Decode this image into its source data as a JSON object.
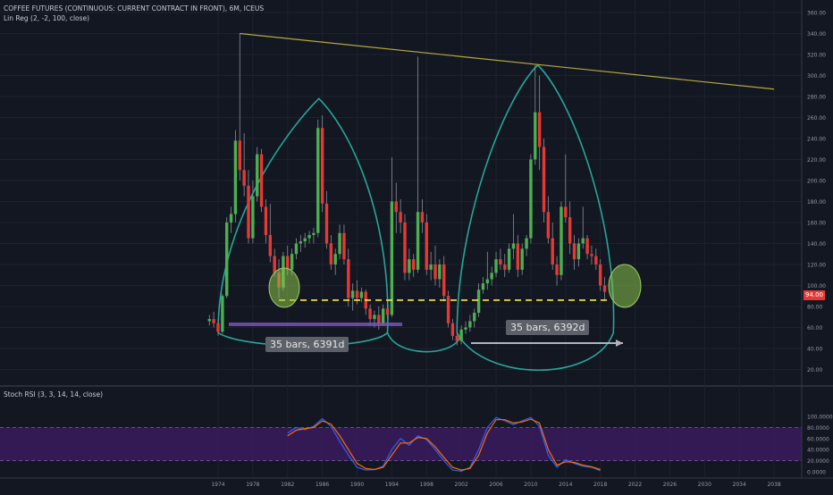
{
  "header": {
    "title": "COFFEE FUTURES (CONTINUOUS: CURRENT CONTRACT IN FRONT), 6M, ICEUS",
    "indicator": "Lin Reg (2, -2, 100, close)",
    "stoch_label": "Stoch RSI (3, 3, 14, 14, close)"
  },
  "annotations": {
    "left_bars": "35 bars, 6391d",
    "right_bars": "35 bars, 6392d"
  },
  "price_tag": {
    "value": "94.00",
    "color": "#e53935"
  },
  "colors": {
    "up": "#4caf50",
    "down": "#e53935",
    "wick": "#8a8f9a",
    "cup": "#26a69a",
    "trendline": "#b7a83a",
    "support": "#ffeb3b",
    "ellipse": "#8bc34a",
    "stoch_k": "#2962ff",
    "stoch_d": "#ff6d00",
    "band": "#3a1b5e"
  },
  "chart_data": [
    {
      "type": "candlestick",
      "title": "",
      "price_axis": {
        "ticks": [
          "360.00",
          "340.00",
          "320.00",
          "300.00",
          "280.00",
          "260.00",
          "240.00",
          "220.00",
          "200.00",
          "180.00",
          "160.00",
          "140.00",
          "120.00",
          "100.00",
          "80.00",
          "60.00",
          "40.00",
          "20.00"
        ]
      },
      "time_axis": {
        "ticks": [
          "1974",
          "1978",
          "1982",
          "1986",
          "1990",
          "1994",
          "1998",
          "2002",
          "2006",
          "2010",
          "2014",
          "2018",
          "2022",
          "2026",
          "2030",
          "2034",
          "2038"
        ]
      },
      "candles": [
        {
          "t": 1973.0,
          "o": 66,
          "h": 72,
          "l": 62,
          "c": 68
        },
        {
          "t": 1973.5,
          "o": 68,
          "h": 75,
          "l": 60,
          "c": 64
        },
        {
          "t": 1974.0,
          "o": 64,
          "h": 68,
          "l": 52,
          "c": 56
        },
        {
          "t": 1974.5,
          "o": 56,
          "h": 92,
          "l": 54,
          "c": 90
        },
        {
          "t": 1975.0,
          "o": 90,
          "h": 165,
          "l": 88,
          "c": 160
        },
        {
          "t": 1975.5,
          "o": 160,
          "h": 175,
          "l": 150,
          "c": 168
        },
        {
          "t": 1976.0,
          "o": 168,
          "h": 248,
          "l": 160,
          "c": 238
        },
        {
          "t": 1976.5,
          "o": 238,
          "h": 340,
          "l": 200,
          "c": 210
        },
        {
          "t": 1977.0,
          "o": 210,
          "h": 245,
          "l": 185,
          "c": 195
        },
        {
          "t": 1977.5,
          "o": 195,
          "h": 210,
          "l": 140,
          "c": 145
        },
        {
          "t": 1978.0,
          "o": 145,
          "h": 200,
          "l": 140,
          "c": 185
        },
        {
          "t": 1978.5,
          "o": 185,
          "h": 232,
          "l": 180,
          "c": 225
        },
        {
          "t": 1979.0,
          "o": 225,
          "h": 230,
          "l": 170,
          "c": 175
        },
        {
          "t": 1979.5,
          "o": 175,
          "h": 182,
          "l": 140,
          "c": 148
        },
        {
          "t": 1980.0,
          "o": 148,
          "h": 178,
          "l": 122,
          "c": 128
        },
        {
          "t": 1980.5,
          "o": 128,
          "h": 135,
          "l": 108,
          "c": 112
        },
        {
          "t": 1981.0,
          "o": 112,
          "h": 125,
          "l": 88,
          "c": 98
        },
        {
          "t": 1981.5,
          "o": 98,
          "h": 132,
          "l": 95,
          "c": 128
        },
        {
          "t": 1982.0,
          "o": 128,
          "h": 138,
          "l": 110,
          "c": 115
        },
        {
          "t": 1982.5,
          "o": 115,
          "h": 135,
          "l": 110,
          "c": 130
        },
        {
          "t": 1983.0,
          "o": 130,
          "h": 145,
          "l": 125,
          "c": 140
        },
        {
          "t": 1983.5,
          "o": 140,
          "h": 148,
          "l": 132,
          "c": 142
        },
        {
          "t": 1984.0,
          "o": 142,
          "h": 150,
          "l": 136,
          "c": 145
        },
        {
          "t": 1984.5,
          "o": 145,
          "h": 152,
          "l": 140,
          "c": 148
        },
        {
          "t": 1985.0,
          "o": 148,
          "h": 155,
          "l": 140,
          "c": 150
        },
        {
          "t": 1985.5,
          "o": 150,
          "h": 258,
          "l": 146,
          "c": 250
        },
        {
          "t": 1986.0,
          "o": 250,
          "h": 262,
          "l": 170,
          "c": 178
        },
        {
          "t": 1986.5,
          "o": 178,
          "h": 190,
          "l": 135,
          "c": 140
        },
        {
          "t": 1987.0,
          "o": 140,
          "h": 148,
          "l": 115,
          "c": 120
        },
        {
          "t": 1987.5,
          "o": 120,
          "h": 135,
          "l": 110,
          "c": 130
        },
        {
          "t": 1988.0,
          "o": 130,
          "h": 158,
          "l": 125,
          "c": 150
        },
        {
          "t": 1988.5,
          "o": 150,
          "h": 158,
          "l": 120,
          "c": 125
        },
        {
          "t": 1989.0,
          "o": 125,
          "h": 135,
          "l": 80,
          "c": 88
        },
        {
          "t": 1989.5,
          "o": 88,
          "h": 102,
          "l": 76,
          "c": 95
        },
        {
          "t": 1990.0,
          "o": 95,
          "h": 105,
          "l": 82,
          "c": 88
        },
        {
          "t": 1990.5,
          "o": 88,
          "h": 98,
          "l": 84,
          "c": 94
        },
        {
          "t": 1991.0,
          "o": 94,
          "h": 96,
          "l": 72,
          "c": 78
        },
        {
          "t": 1991.5,
          "o": 78,
          "h": 82,
          "l": 62,
          "c": 68
        },
        {
          "t": 1992.0,
          "o": 68,
          "h": 76,
          "l": 60,
          "c": 72
        },
        {
          "t": 1992.5,
          "o": 72,
          "h": 80,
          "l": 58,
          "c": 64
        },
        {
          "t": 1993.0,
          "o": 64,
          "h": 82,
          "l": 62,
          "c": 78
        },
        {
          "t": 1993.5,
          "o": 78,
          "h": 85,
          "l": 68,
          "c": 72
        },
        {
          "t": 1994.0,
          "o": 72,
          "h": 222,
          "l": 70,
          "c": 180
        },
        {
          "t": 1994.5,
          "o": 180,
          "h": 198,
          "l": 150,
          "c": 170
        },
        {
          "t": 1995.0,
          "o": 170,
          "h": 182,
          "l": 150,
          "c": 160
        },
        {
          "t": 1995.5,
          "o": 160,
          "h": 168,
          "l": 105,
          "c": 112
        },
        {
          "t": 1996.0,
          "o": 112,
          "h": 135,
          "l": 105,
          "c": 125
        },
        {
          "t": 1996.5,
          "o": 125,
          "h": 130,
          "l": 108,
          "c": 115
        },
        {
          "t": 1997.0,
          "o": 115,
          "h": 318,
          "l": 112,
          "c": 170
        },
        {
          "t": 1997.5,
          "o": 170,
          "h": 182,
          "l": 150,
          "c": 160
        },
        {
          "t": 1998.0,
          "o": 160,
          "h": 168,
          "l": 110,
          "c": 115
        },
        {
          "t": 1998.5,
          "o": 115,
          "h": 132,
          "l": 105,
          "c": 120
        },
        {
          "t": 1999.0,
          "o": 120,
          "h": 138,
          "l": 100,
          "c": 106
        },
        {
          "t": 1999.5,
          "o": 106,
          "h": 125,
          "l": 98,
          "c": 120
        },
        {
          "t": 2000.0,
          "o": 120,
          "h": 128,
          "l": 85,
          "c": 90
        },
        {
          "t": 2000.5,
          "o": 90,
          "h": 95,
          "l": 60,
          "c": 64
        },
        {
          "t": 2001.0,
          "o": 64,
          "h": 68,
          "l": 48,
          "c": 52
        },
        {
          "t": 2001.5,
          "o": 52,
          "h": 56,
          "l": 43,
          "c": 47
        },
        {
          "t": 2002.0,
          "o": 47,
          "h": 62,
          "l": 44,
          "c": 58
        },
        {
          "t": 2002.5,
          "o": 58,
          "h": 66,
          "l": 54,
          "c": 60
        },
        {
          "t": 2003.0,
          "o": 60,
          "h": 72,
          "l": 56,
          "c": 66
        },
        {
          "t": 2003.5,
          "o": 66,
          "h": 78,
          "l": 60,
          "c": 74
        },
        {
          "t": 2004.0,
          "o": 74,
          "h": 102,
          "l": 70,
          "c": 96
        },
        {
          "t": 2004.5,
          "o": 96,
          "h": 108,
          "l": 92,
          "c": 102
        },
        {
          "t": 2005.0,
          "o": 102,
          "h": 132,
          "l": 96,
          "c": 106
        },
        {
          "t": 2005.5,
          "o": 106,
          "h": 118,
          "l": 100,
          "c": 112
        },
        {
          "t": 2006.0,
          "o": 112,
          "h": 132,
          "l": 108,
          "c": 125
        },
        {
          "t": 2006.5,
          "o": 125,
          "h": 135,
          "l": 115,
          "c": 120
        },
        {
          "t": 2007.0,
          "o": 120,
          "h": 130,
          "l": 108,
          "c": 115
        },
        {
          "t": 2007.5,
          "o": 115,
          "h": 140,
          "l": 112,
          "c": 135
        },
        {
          "t": 2008.0,
          "o": 135,
          "h": 168,
          "l": 125,
          "c": 140
        },
        {
          "t": 2008.5,
          "o": 140,
          "h": 148,
          "l": 108,
          "c": 115
        },
        {
          "t": 2009.0,
          "o": 115,
          "h": 140,
          "l": 110,
          "c": 135
        },
        {
          "t": 2009.5,
          "o": 135,
          "h": 148,
          "l": 128,
          "c": 145
        },
        {
          "t": 2010.0,
          "o": 145,
          "h": 225,
          "l": 140,
          "c": 220
        },
        {
          "t": 2010.5,
          "o": 220,
          "h": 310,
          "l": 215,
          "c": 265
        },
        {
          "t": 2011.0,
          "o": 265,
          "h": 300,
          "l": 210,
          "c": 232
        },
        {
          "t": 2011.5,
          "o": 232,
          "h": 240,
          "l": 160,
          "c": 170
        },
        {
          "t": 2012.0,
          "o": 170,
          "h": 185,
          "l": 140,
          "c": 145
        },
        {
          "t": 2012.5,
          "o": 145,
          "h": 160,
          "l": 115,
          "c": 120
        },
        {
          "t": 2013.0,
          "o": 120,
          "h": 128,
          "l": 100,
          "c": 110
        },
        {
          "t": 2013.5,
          "o": 110,
          "h": 180,
          "l": 105,
          "c": 175
        },
        {
          "t": 2014.0,
          "o": 175,
          "h": 225,
          "l": 160,
          "c": 165
        },
        {
          "t": 2014.5,
          "o": 165,
          "h": 180,
          "l": 130,
          "c": 140
        },
        {
          "t": 2015.0,
          "o": 140,
          "h": 148,
          "l": 115,
          "c": 125
        },
        {
          "t": 2015.5,
          "o": 125,
          "h": 145,
          "l": 118,
          "c": 140
        },
        {
          "t": 2016.0,
          "o": 140,
          "h": 175,
          "l": 135,
          "c": 145
        },
        {
          "t": 2016.5,
          "o": 145,
          "h": 148,
          "l": 125,
          "c": 130
        },
        {
          "t": 2017.0,
          "o": 130,
          "h": 138,
          "l": 120,
          "c": 128
        },
        {
          "t": 2017.5,
          "o": 128,
          "h": 135,
          "l": 115,
          "c": 120
        },
        {
          "t": 2018.0,
          "o": 120,
          "h": 125,
          "l": 95,
          "c": 100
        },
        {
          "t": 2018.5,
          "o": 100,
          "h": 108,
          "l": 86,
          "c": 94
        }
      ],
      "lines": [
        {
          "kind": "trendline",
          "from": [
            1976.5,
            340
          ],
          "to": [
            2038,
            287
          ]
        },
        {
          "kind": "support",
          "level": 86,
          "from": 1981,
          "to": 2019
        }
      ],
      "cups": [
        {
          "start": 1974.0,
          "peak": 1985.6,
          "end": 1993.5,
          "top": 278,
          "bottom": 47
        },
        {
          "start": 1993.5,
          "end": 2001.8,
          "bottom": 36
        },
        {
          "start": 2001.5,
          "peak": 2010.8,
          "end": 2019.5,
          "top": 310,
          "bottom": 16
        }
      ]
    },
    {
      "type": "line",
      "title": "",
      "y_axis": {
        "ticks": [
          "100.0000",
          "80.0000",
          "60.0000",
          "40.0000",
          "20.0000",
          "0.0000"
        ],
        "range": [
          0,
          100
        ]
      },
      "band": [
        20,
        80
      ],
      "series": [
        {
          "values": [
            [
              1982,
              70
            ],
            [
              1983,
              80
            ],
            [
              1984,
              76
            ],
            [
              1985,
              82
            ],
            [
              1986,
              96
            ],
            [
              1987,
              82
            ],
            [
              1988,
              55
            ],
            [
              1989,
              30
            ],
            [
              1990,
              8
            ],
            [
              1991,
              3
            ],
            [
              1992,
              4
            ],
            [
              1993,
              10
            ],
            [
              1994,
              40
            ],
            [
              1995,
              60
            ],
            [
              1996,
              48
            ],
            [
              1997,
              65
            ],
            [
              1998,
              58
            ],
            [
              1999,
              40
            ],
            [
              2000,
              20
            ],
            [
              2001,
              3
            ],
            [
              2002,
              1
            ],
            [
              2003,
              8
            ],
            [
              2004,
              40
            ],
            [
              2005,
              80
            ],
            [
              2006,
              98
            ],
            [
              2007,
              92
            ],
            [
              2008,
              85
            ],
            [
              2009,
              92
            ],
            [
              2010,
              98
            ],
            [
              2011,
              82
            ],
            [
              2012,
              30
            ],
            [
              2013,
              8
            ],
            [
              2014,
              22
            ],
            [
              2015,
              15
            ],
            [
              2016,
              10
            ],
            [
              2017,
              8
            ],
            [
              2018,
              2
            ]
          ]
        },
        {
          "values": [
            [
              1982,
              65
            ],
            [
              1983,
              75
            ],
            [
              1984,
              78
            ],
            [
              1985,
              80
            ],
            [
              1986,
              92
            ],
            [
              1987,
              86
            ],
            [
              1988,
              65
            ],
            [
              1989,
              40
            ],
            [
              1990,
              15
            ],
            [
              1991,
              6
            ],
            [
              1992,
              4
            ],
            [
              1993,
              8
            ],
            [
              1994,
              30
            ],
            [
              1995,
              52
            ],
            [
              1996,
              52
            ],
            [
              1997,
              62
            ],
            [
              1998,
              60
            ],
            [
              1999,
              45
            ],
            [
              2000,
              26
            ],
            [
              2001,
              8
            ],
            [
              2002,
              3
            ],
            [
              2003,
              6
            ],
            [
              2004,
              30
            ],
            [
              2005,
              70
            ],
            [
              2006,
              94
            ],
            [
              2007,
              94
            ],
            [
              2008,
              88
            ],
            [
              2009,
              90
            ],
            [
              2010,
              95
            ],
            [
              2011,
              88
            ],
            [
              2012,
              40
            ],
            [
              2013,
              12
            ],
            [
              2014,
              18
            ],
            [
              2015,
              17
            ],
            [
              2016,
              12
            ],
            [
              2017,
              9
            ],
            [
              2018,
              4
            ]
          ]
        }
      ]
    }
  ]
}
